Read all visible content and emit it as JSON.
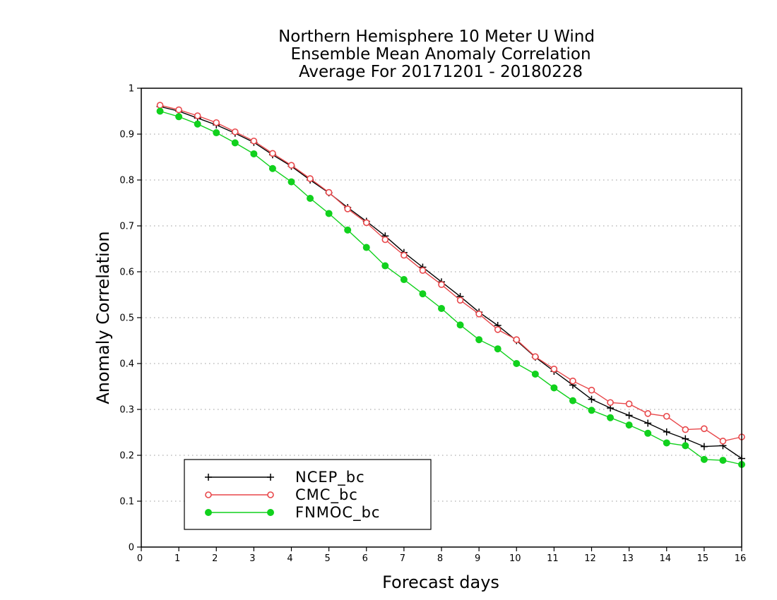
{
  "chart_data": {
    "type": "line",
    "title_lines": [
      "Northern Hemisphere 10 Meter U Wind",
      "Ensemble Mean Anomaly Correlation",
      "Average For 20171201 - 20180228"
    ],
    "xlabel": "Forecast days",
    "ylabel": "Anomaly Correlation",
    "xlim": [
      0,
      16
    ],
    "ylim": [
      0,
      1
    ],
    "xticks": [
      "0",
      "1",
      "2",
      "3",
      "4",
      "5",
      "6",
      "7",
      "8",
      "9",
      "10",
      "11",
      "12",
      "13",
      "14",
      "15",
      "16"
    ],
    "yticks": [
      "0",
      "0.1",
      "0.2",
      "0.3",
      "0.4",
      "0.5",
      "0.6",
      "0.7",
      "0.8",
      "0.9",
      "1"
    ],
    "grid": "horizontal dotted",
    "legend_position": "bottom-left",
    "x": [
      0.5,
      1,
      1.5,
      2,
      2.5,
      3,
      3.5,
      4,
      4.5,
      5,
      5.5,
      6,
      6.5,
      7,
      7.5,
      8,
      8.5,
      9,
      9.5,
      10,
      10.5,
      11,
      11.5,
      12,
      12.5,
      13,
      13.5,
      14,
      14.5,
      15,
      15.5,
      16
    ],
    "series": [
      {
        "name": "NCEP_bc",
        "color": "#000000",
        "marker": "plus",
        "values": [
          0.96,
          0.95,
          0.935,
          0.92,
          0.902,
          0.882,
          0.855,
          0.83,
          0.8,
          0.772,
          0.74,
          0.71,
          0.678,
          0.642,
          0.61,
          0.578,
          0.546,
          0.512,
          0.483,
          0.45,
          0.414,
          0.383,
          0.353,
          0.322,
          0.303,
          0.287,
          0.27,
          0.251,
          0.236,
          0.219,
          0.221,
          0.193
        ]
      },
      {
        "name": "CMC_bc",
        "color": "#e8474a",
        "marker": "open-circle",
        "values": [
          0.963,
          0.953,
          0.94,
          0.925,
          0.905,
          0.885,
          0.858,
          0.832,
          0.803,
          0.773,
          0.737,
          0.707,
          0.67,
          0.636,
          0.603,
          0.572,
          0.538,
          0.508,
          0.474,
          0.452,
          0.415,
          0.388,
          0.362,
          0.342,
          0.315,
          0.312,
          0.291,
          0.285,
          0.256,
          0.258,
          0.231,
          0.24
        ]
      },
      {
        "name": "FNMOC_bc",
        "color": "#11d11d",
        "marker": "filled-circle",
        "values": [
          0.95,
          0.938,
          0.922,
          0.903,
          0.881,
          0.857,
          0.825,
          0.796,
          0.76,
          0.727,
          0.691,
          0.653,
          0.613,
          0.583,
          0.552,
          0.52,
          0.484,
          0.452,
          0.432,
          0.4,
          0.377,
          0.347,
          0.319,
          0.298,
          0.282,
          0.266,
          0.248,
          0.227,
          0.221,
          0.191,
          0.189,
          0.18
        ]
      }
    ]
  }
}
